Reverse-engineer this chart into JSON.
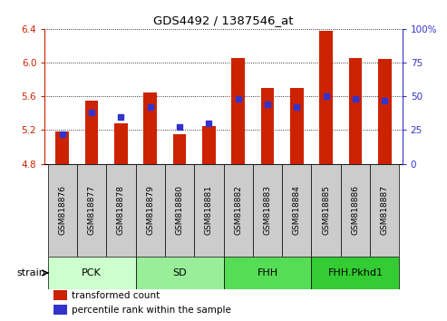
{
  "title": "GDS4492 / 1387546_at",
  "samples": [
    "GSM818876",
    "GSM818877",
    "GSM818878",
    "GSM818879",
    "GSM818880",
    "GSM818881",
    "GSM818882",
    "GSM818883",
    "GSM818884",
    "GSM818885",
    "GSM818886",
    "GSM818887"
  ],
  "transformed_count": [
    5.18,
    5.55,
    5.28,
    5.65,
    5.15,
    5.25,
    6.05,
    5.7,
    5.7,
    6.38,
    6.05,
    6.04
  ],
  "percentile_rank": [
    22,
    38,
    35,
    42,
    27,
    30,
    48,
    44,
    42,
    50,
    48,
    47
  ],
  "ylim_left": [
    4.8,
    6.4
  ],
  "ylim_right": [
    0,
    100
  ],
  "yticks_left": [
    4.8,
    5.2,
    5.6,
    6.0,
    6.4
  ],
  "yticks_right": [
    0,
    25,
    50,
    75,
    100
  ],
  "ytick_labels_right": [
    "0",
    "25",
    "50",
    "75",
    "100%"
  ],
  "bar_color": "#CC2200",
  "dot_color": "#3333CC",
  "bar_bottom": 4.8,
  "groups": [
    {
      "label": "PCK",
      "start": 0,
      "end": 3,
      "color": "#CCFFCC"
    },
    {
      "label": "SD",
      "start": 3,
      "end": 6,
      "color": "#99EE99"
    },
    {
      "label": "FHH",
      "start": 6,
      "end": 9,
      "color": "#55DD55"
    },
    {
      "label": "FHH.Pkhd1",
      "start": 9,
      "end": 12,
      "color": "#33CC33"
    }
  ],
  "legend_items": [
    {
      "label": "transformed count",
      "color": "#CC2200"
    },
    {
      "label": "percentile rank within the sample",
      "color": "#3333CC"
    }
  ],
  "strain_label": "strain",
  "background_color": "#FFFFFF",
  "tick_color_left": "#CC2200",
  "tick_color_right": "#3333CC",
  "xticklabel_bg": "#CCCCCC",
  "bar_width": 0.45
}
